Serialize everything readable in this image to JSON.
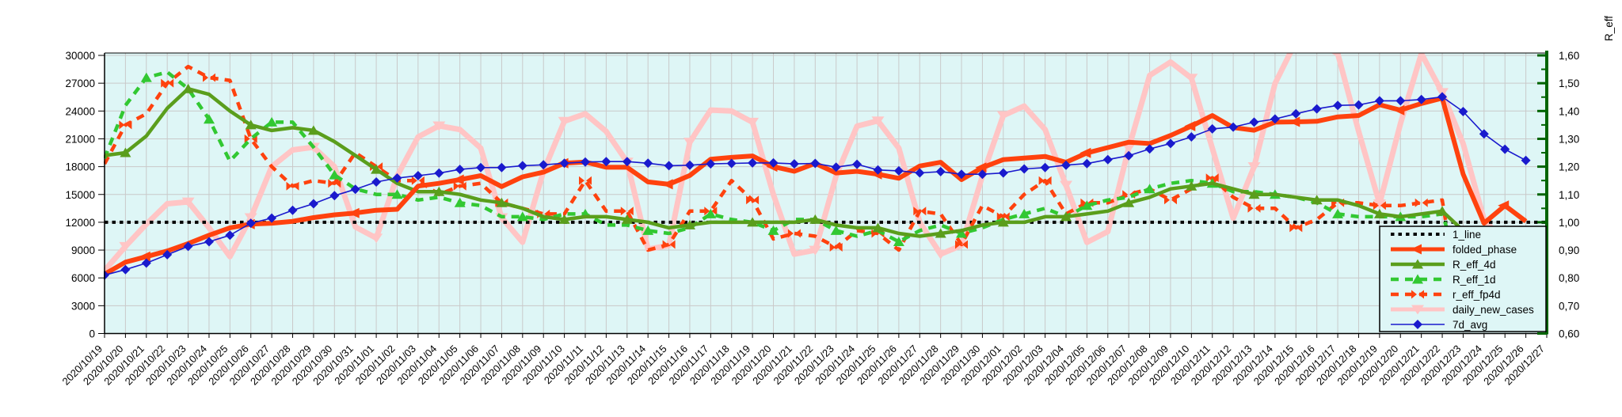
{
  "chart_data": {
    "type": "line",
    "title": "",
    "right_axis_title": "R_eff",
    "legend_position": "bottom-right",
    "grid": "on",
    "colors": {
      "plot_bg": "#def6f6",
      "grid": "#c9c9c9",
      "axis_left": "#000000",
      "axis_right": "#006400",
      "orange": "#ff420e",
      "olive": "#5a9e1c",
      "green": "#32c832",
      "pink": "#ffc5c5",
      "blue": "#1a1acd",
      "black": "#000000"
    },
    "left_axis": {
      "min": 0,
      "max": 30000,
      "step": 3000,
      "tick_labels": [
        "0",
        "3000",
        "6000",
        "9000",
        "12000",
        "15000",
        "18000",
        "21000",
        "24000",
        "27000",
        "30000"
      ]
    },
    "right_axis": {
      "min": 0.6,
      "max": 1.6,
      "step": 0.1,
      "tick_labels": [
        "0,60",
        "0,70",
        "0,80",
        "0,90",
        "1,00",
        "1,10",
        "1,20",
        "1,30",
        "1,40",
        "1,50",
        "1,60"
      ]
    },
    "x": [
      "2020/10/19",
      "2020/10/20",
      "2020/10/21",
      "2020/10/22",
      "2020/10/23",
      "2020/10/24",
      "2020/10/25",
      "2020/10/26",
      "2020/10/27",
      "2020/10/28",
      "2020/10/29",
      "2020/10/30",
      "2020/10/31",
      "2020/11/01",
      "2020/11/02",
      "2020/11/03",
      "2020/11/04",
      "2020/11/05",
      "2020/11/06",
      "2020/11/07",
      "2020/11/08",
      "2020/11/09",
      "2020/11/10",
      "2020/11/11",
      "2020/11/12",
      "2020/11/13",
      "2020/11/14",
      "2020/11/15",
      "2020/11/16",
      "2020/11/17",
      "2020/11/18",
      "2020/11/19",
      "2020/11/20",
      "2020/11/21",
      "2020/11/22",
      "2020/11/23",
      "2020/11/24",
      "2020/11/25",
      "2020/11/26",
      "2020/11/27",
      "2020/11/28",
      "2020/11/29",
      "2020/11/30",
      "2020/12/01",
      "2020/12/02",
      "2020/12/03",
      "2020/12/04",
      "2020/12/05",
      "2020/12/06",
      "2020/12/07",
      "2020/12/08",
      "2020/12/09",
      "2020/12/10",
      "2020/12/11",
      "2020/12/12",
      "2020/12/13",
      "2020/12/14",
      "2020/12/15",
      "2020/12/16",
      "2020/12/17",
      "2020/12/18",
      "2020/12/19",
      "2020/12/20",
      "2020/12/21",
      "2020/12/22",
      "2020/12/23",
      "2020/12/24",
      "2020/12/25",
      "2020/12/26",
      "2020/12/27"
    ],
    "series": [
      {
        "name": "1_line",
        "axis": "right",
        "color": "#000000",
        "width": 4,
        "dash": "4.5 5",
        "marker": "none",
        "marker_every": 0,
        "z": 2,
        "constant": 1.0
      },
      {
        "name": "folded_phase",
        "axis": "left",
        "color": "#ff420e",
        "width": 6,
        "dash": null,
        "marker": "arrow-left",
        "marker_every": 5,
        "marker_offset": 2,
        "z": 6,
        "values": [
          6400,
          7700,
          8300,
          8900,
          9700,
          10600,
          11400,
          11800,
          11900,
          12100,
          12500,
          12800,
          13000,
          13300,
          13400,
          15900,
          16200,
          16600,
          17030,
          15850,
          16900,
          17400,
          18370,
          18500,
          17930,
          17930,
          16350,
          16100,
          17050,
          18800,
          19000,
          19150,
          18000,
          17500,
          18350,
          17320,
          17500,
          17180,
          16745,
          18070,
          18470,
          16600,
          17900,
          18760,
          18930,
          19100,
          18470,
          19480,
          20060,
          20640,
          20490,
          21360,
          22370,
          23510,
          22220,
          21930,
          22800,
          22830,
          22890,
          23370,
          23510,
          24670,
          24090,
          24810,
          25380,
          17200,
          11900,
          13800,
          12100,
          null
        ]
      },
      {
        "name": "R_eff_4d",
        "axis": "right",
        "color": "#5a9e1c",
        "width": 4.5,
        "dash": null,
        "marker": "triangle",
        "marker_every": 3,
        "marker_offset": 1,
        "z": 5,
        "values": [
          1.24,
          1.25,
          1.31,
          1.41,
          1.48,
          1.46,
          1.4,
          1.35,
          1.33,
          1.34,
          1.33,
          1.29,
          1.24,
          1.19,
          1.14,
          1.11,
          1.11,
          1.1,
          1.08,
          1.07,
          1.05,
          1.02,
          1.01,
          1.02,
          1.02,
          1.01,
          1.0,
          0.98,
          0.99,
          1.0,
          1.0,
          1.0,
          1.0,
          1.0,
          1.01,
          0.99,
          0.98,
          0.98,
          0.96,
          0.95,
          0.96,
          0.97,
          0.99,
          1.0,
          1.0,
          1.02,
          1.02,
          1.03,
          1.04,
          1.07,
          1.09,
          1.12,
          1.13,
          1.14,
          1.12,
          1.1,
          1.1,
          1.09,
          1.08,
          1.08,
          1.06,
          1.03,
          1.02,
          1.03,
          1.04,
          0.97,
          0.87,
          0.77,
          0.72,
          null
        ]
      },
      {
        "name": "R_eff_1d",
        "axis": "right",
        "color": "#32c832",
        "width": 4.5,
        "dash": "10 8",
        "marker": "triangle",
        "marker_every": 3,
        "marker_offset": 2,
        "z": 4,
        "values": [
          1.23,
          1.42,
          1.52,
          1.54,
          1.48,
          1.37,
          1.22,
          1.3,
          1.36,
          1.36,
          1.27,
          1.17,
          1.12,
          1.1,
          1.1,
          1.08,
          1.09,
          1.07,
          1.06,
          1.02,
          1.02,
          1.01,
          1.03,
          1.03,
          0.99,
          0.99,
          0.97,
          0.96,
          0.98,
          1.03,
          1.01,
          1.0,
          0.97,
          1.01,
          1.01,
          0.97,
          0.95,
          0.97,
          0.93,
          0.97,
          0.99,
          0.96,
          0.98,
          1.01,
          1.03,
          1.05,
          1.02,
          1.06,
          1.08,
          1.09,
          1.12,
          1.14,
          1.15,
          1.14,
          1.11,
          1.11,
          1.1,
          1.09,
          1.07,
          1.03,
          1.02,
          1.02,
          1.02,
          1.02,
          1.03,
          0.8,
          0.64,
          0.7,
          0.78,
          null
        ]
      },
      {
        "name": "r_eff_fp4d",
        "axis": "right",
        "color": "#ff420e",
        "width": 4.5,
        "dash": "10 8",
        "marker": "bowtie",
        "marker_every": 2,
        "marker_offset": 1,
        "z": 3,
        "values": [
          1.21,
          1.35,
          1.39,
          1.5,
          1.56,
          1.52,
          1.51,
          1.3,
          1.2,
          1.13,
          1.15,
          1.14,
          1.25,
          1.2,
          1.15,
          1.15,
          1.1,
          1.13,
          1.14,
          1.07,
          1.05,
          1.03,
          1.03,
          1.15,
          1.04,
          1.04,
          0.9,
          0.92,
          1.04,
          1.04,
          1.15,
          1.08,
          0.94,
          0.96,
          0.95,
          0.91,
          0.97,
          0.96,
          0.9,
          1.04,
          1.03,
          0.92,
          1.06,
          1.02,
          1.1,
          1.15,
          1.03,
          1.07,
          1.07,
          1.1,
          1.12,
          1.08,
          1.12,
          1.16,
          1.09,
          1.05,
          1.05,
          0.98,
          1.01,
          1.07,
          1.07,
          1.06,
          1.06,
          1.07,
          1.08,
          0.62,
          null,
          null,
          null,
          null
        ]
      },
      {
        "name": "daily_new_cases",
        "axis": "left",
        "color": "#ffc5c5",
        "width": 7,
        "dash": null,
        "marker": "arrow-down",
        "marker_every": 3,
        "marker_offset": 1,
        "z": 1,
        "values": [
          6800,
          9400,
          11800,
          14000,
          14200,
          11400,
          8300,
          12500,
          18000,
          19800,
          20100,
          18000,
          11500,
          10300,
          17000,
          21200,
          22400,
          22000,
          20000,
          12500,
          9850,
          17500,
          22900,
          23700,
          21800,
          18500,
          9100,
          9500,
          20650,
          24100,
          24000,
          22800,
          15000,
          8560,
          9000,
          17000,
          22370,
          22945,
          20000,
          12000,
          8560,
          9500,
          17000,
          23510,
          24525,
          22000,
          16000,
          9830,
          11000,
          20000,
          27840,
          29280,
          27550,
          20000,
          12430,
          18000,
          26970,
          31500,
          31500,
          30180,
          21800,
          14000,
          22650,
          30200,
          26000,
          20490,
          12280,
          9800,
          5900,
          null
        ]
      },
      {
        "name": "7d_avg",
        "axis": "left",
        "color": "#1a1acd",
        "width": 1.6,
        "dash": null,
        "marker": "diamond",
        "marker_every": 1,
        "marker_offset": 0,
        "z": 7,
        "values": [
          6300,
          6900,
          7600,
          8500,
          9400,
          9900,
          10600,
          11900,
          12450,
          13300,
          14000,
          14870,
          15560,
          16340,
          16770,
          17030,
          17300,
          17700,
          17900,
          17900,
          18100,
          18200,
          18370,
          18500,
          18550,
          18550,
          18370,
          18100,
          18150,
          18300,
          18350,
          18400,
          18400,
          18300,
          18350,
          17950,
          18260,
          17640,
          17550,
          17330,
          17465,
          17180,
          17180,
          17320,
          17750,
          17900,
          18160,
          18330,
          18760,
          19190,
          19910,
          20490,
          21210,
          22070,
          22270,
          22800,
          23140,
          23700,
          24230,
          24610,
          24660,
          25100,
          25100,
          25240,
          25530,
          23940,
          21530,
          19880,
          18670,
          null
        ]
      }
    ],
    "legend": {
      "labels": [
        "1_line",
        "folded_phase",
        "R_eff_4d",
        "R_eff_1d",
        "r_eff_fp4d",
        "daily_new_cases",
        "7d_avg"
      ]
    }
  }
}
